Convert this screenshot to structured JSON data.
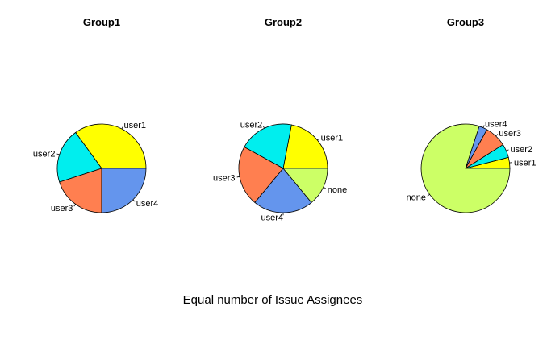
{
  "chart_data": [
    {
      "type": "pie",
      "title": "Group1",
      "slices": [
        {
          "label": "user1",
          "value": 0.35,
          "color": "#ffff00"
        },
        {
          "label": "user2",
          "value": 0.2,
          "color": "#00eeee"
        },
        {
          "label": "user3",
          "value": 0.2,
          "color": "#ff7f50"
        },
        {
          "label": "user4",
          "value": 0.25,
          "color": "#6495ed"
        }
      ]
    },
    {
      "type": "pie",
      "title": "Group2",
      "slices": [
        {
          "label": "user1",
          "value": 0.22,
          "color": "#ffff00"
        },
        {
          "label": "user2",
          "value": 0.2,
          "color": "#00eeee"
        },
        {
          "label": "user3",
          "value": 0.22,
          "color": "#ff7f50"
        },
        {
          "label": "user4",
          "value": 0.22,
          "color": "#6495ed"
        },
        {
          "label": "none",
          "value": 0.14,
          "color": "#ccff66"
        }
      ]
    },
    {
      "type": "pie",
      "title": "Group3",
      "slices": [
        {
          "label": "user1",
          "value": 0.04,
          "color": "#ffff00"
        },
        {
          "label": "user2",
          "value": 0.05,
          "color": "#00eeee"
        },
        {
          "label": "user3",
          "value": 0.08,
          "color": "#ff7f50"
        },
        {
          "label": "user4",
          "value": 0.03,
          "color": "#6495ed"
        },
        {
          "label": "none",
          "value": 0.8,
          "color": "#ccff66"
        }
      ]
    }
  ],
  "main_title": "Equal number of Issue Assignees"
}
